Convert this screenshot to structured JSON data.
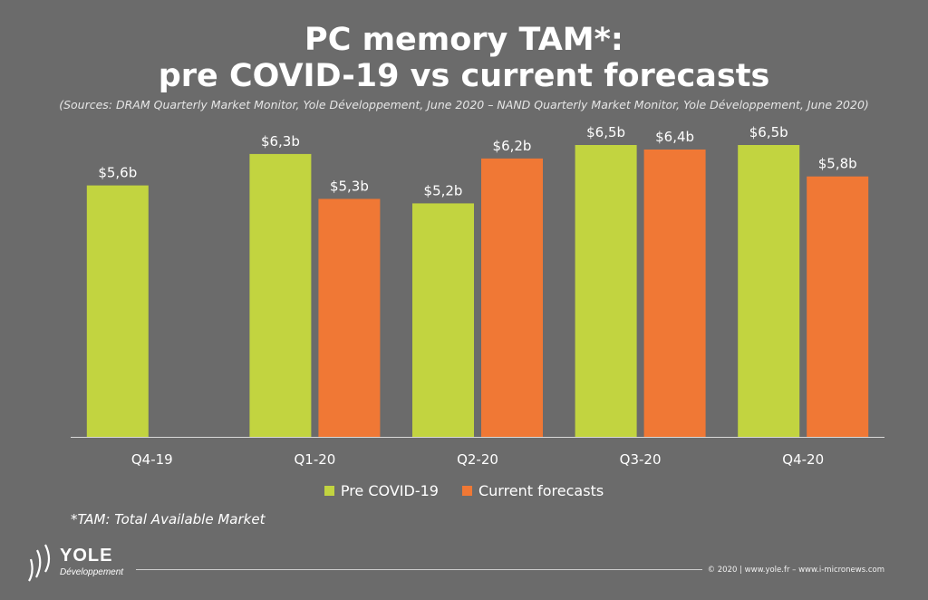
{
  "title_line1": "PC memory TAM*:",
  "title_line2": "pre COVID-19 vs current forecasts",
  "subtitle": "(Sources: DRAM Quarterly Market Monitor, Yole Développement, June 2020 – NAND Quarterly Market Monitor, Yole Développement, June 2020)",
  "footnote": "*TAM: Total Available Market",
  "logo": {
    "name": "YOLE",
    "tagline": "Développement"
  },
  "copyright": "© 2020 | www.yole.fr – www.i-micronews.com",
  "colors": {
    "pre_covid": "#c2d440",
    "current": "#f07835",
    "background": "#6b6b6b"
  },
  "chart_data": {
    "type": "bar",
    "categories": [
      "Q4-19",
      "Q1-20",
      "Q2-20",
      "Q3-20",
      "Q4-20"
    ],
    "series": [
      {
        "name": "Pre COVID-19",
        "values": [
          5.6,
          6.3,
          5.2,
          6.5,
          6.5
        ],
        "labels": [
          "$5,6b",
          "$6,3b",
          "$5,2b",
          "$6,5b",
          "$6,5b"
        ]
      },
      {
        "name": "Current forecasts",
        "values": [
          null,
          5.3,
          6.2,
          6.4,
          5.8
        ],
        "labels": [
          "",
          "$5,3b",
          "$6,2b",
          "$6,4b",
          "$5,8b"
        ]
      }
    ],
    "unit": "$b",
    "ylim": [
      0,
      6.5
    ],
    "grid": false,
    "legend": "bottom-center"
  }
}
